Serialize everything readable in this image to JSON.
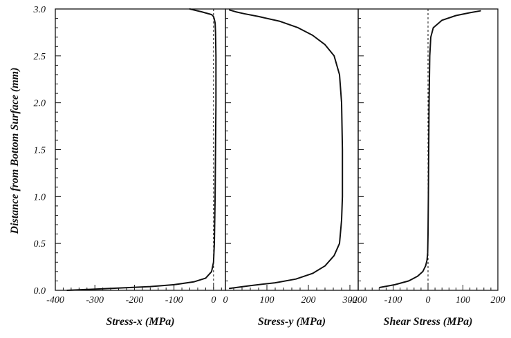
{
  "y_axis": {
    "label": "Distance from Bottom Surface (mm)",
    "range": [
      0,
      3.0
    ],
    "ticks": [
      0.0,
      0.5,
      1.0,
      1.5,
      2.0,
      2.5,
      3.0
    ],
    "tick_labels": [
      "0.0",
      "0.5",
      "1.0",
      "1.5",
      "2.0",
      "2.5",
      "3.0"
    ]
  },
  "chart_data": [
    {
      "type": "line",
      "xlabel": "Stress-x (MPa)",
      "xlim": [
        -400,
        30
      ],
      "x_ticks": [
        -400,
        -300,
        -200,
        -100,
        0
      ],
      "x_tick_labels": [
        "-400",
        "-300",
        "-200",
        "-100",
        "0"
      ],
      "reference_line_x": 0,
      "series": [
        {
          "x": [
            -370,
            -260,
            -160,
            -100,
            -50,
            -20,
            -5,
            0,
            2,
            4,
            5,
            6,
            6,
            5,
            4,
            2,
            0,
            -5,
            -30,
            -60
          ],
          "y": [
            0.0,
            0.02,
            0.04,
            0.06,
            0.09,
            0.13,
            0.2,
            0.3,
            0.5,
            1.0,
            1.5,
            2.0,
            2.5,
            2.75,
            2.85,
            2.89,
            2.92,
            2.94,
            2.97,
            3.0
          ]
        }
      ]
    },
    {
      "type": "line",
      "xlabel": "Stress-y (MPa)",
      "xlim": [
        0,
        320
      ],
      "x_ticks": [
        0,
        100,
        200,
        300
      ],
      "x_tick_labels": [
        "0",
        "100",
        "200",
        "300"
      ],
      "series": [
        {
          "x": [
            10,
            60,
            120,
            170,
            210,
            240,
            262,
            275,
            280,
            282,
            282,
            280,
            275,
            262,
            240,
            210,
            175,
            130,
            80,
            45,
            25,
            10
          ],
          "y": [
            0.02,
            0.05,
            0.08,
            0.12,
            0.18,
            0.26,
            0.37,
            0.5,
            0.75,
            1.0,
            1.5,
            2.0,
            2.3,
            2.5,
            2.62,
            2.72,
            2.8,
            2.87,
            2.92,
            2.95,
            2.97,
            2.99
          ]
        }
      ]
    },
    {
      "type": "line",
      "xlabel": "Shear Stress (MPa)",
      "xlim": [
        -200,
        200
      ],
      "x_ticks": [
        -200,
        -100,
        0,
        100,
        200
      ],
      "x_tick_labels": [
        "-200",
        "-100",
        "0",
        "100",
        "200"
      ],
      "reference_line_x": 0,
      "series": [
        {
          "x": [
            -138,
            -95,
            -55,
            -30,
            -15,
            -7,
            -3,
            -1,
            0,
            1,
            2,
            3,
            5,
            8,
            15,
            40,
            80,
            120,
            150
          ],
          "y": [
            0.03,
            0.06,
            0.1,
            0.15,
            0.2,
            0.26,
            0.32,
            0.4,
            0.6,
            1.0,
            1.5,
            2.0,
            2.5,
            2.7,
            2.8,
            2.88,
            2.93,
            2.96,
            2.98
          ]
        }
      ]
    }
  ]
}
